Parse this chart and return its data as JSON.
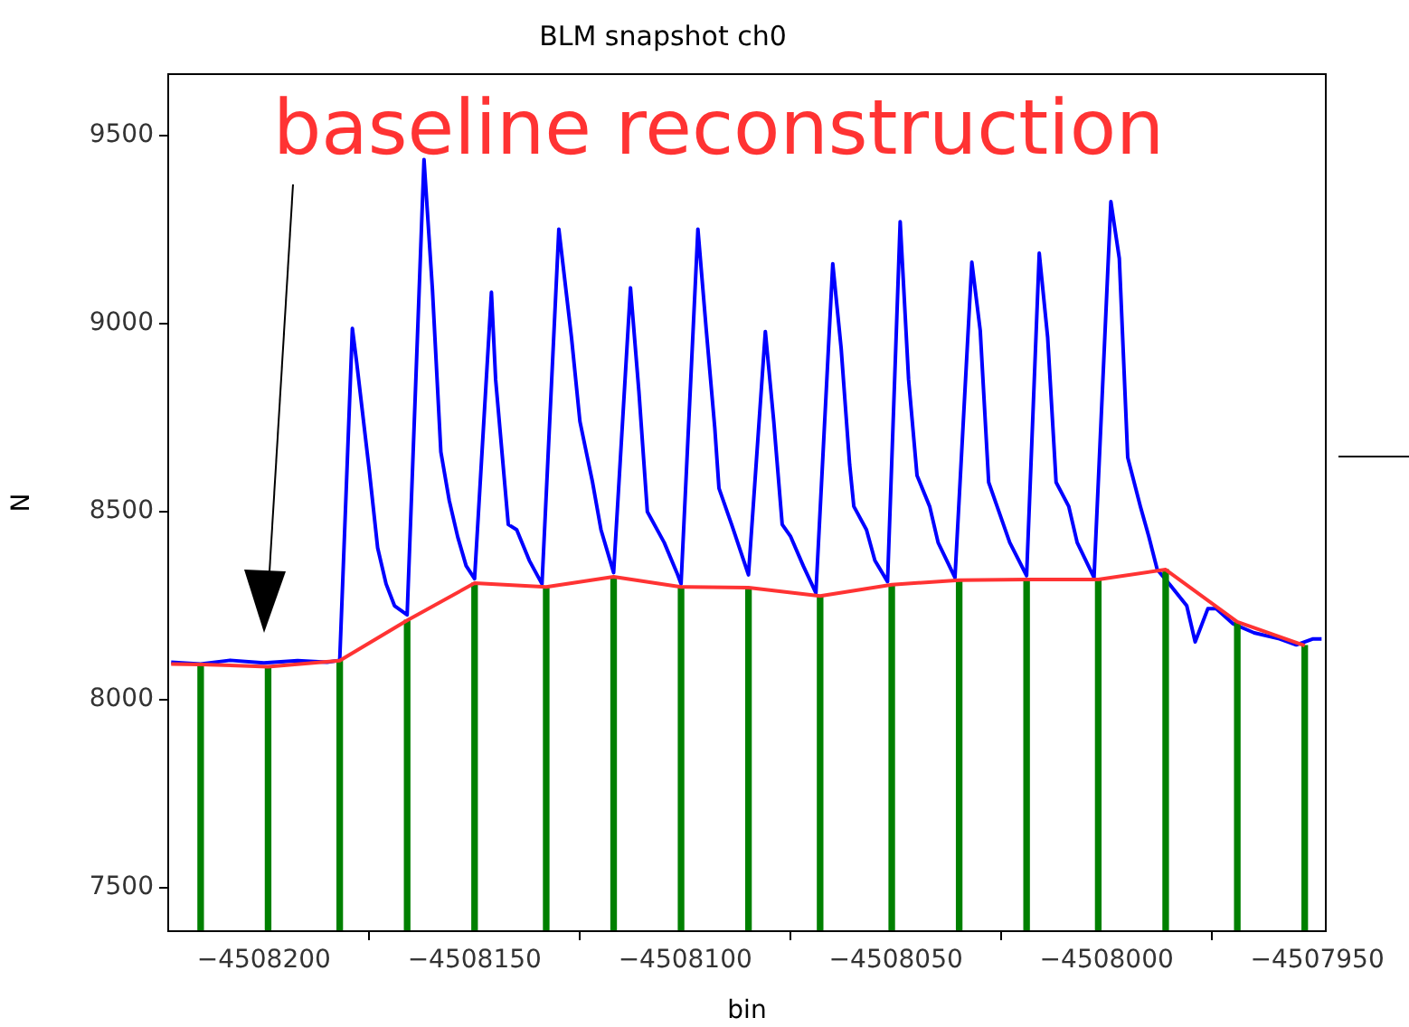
{
  "chart_data": {
    "type": "line",
    "title": "BLM snapshot ch0",
    "xlabel": "bin",
    "ylabel": "N",
    "xlim": [
      -4508222.7,
      -4507948
    ],
    "xticks": [
      -4508200,
      -4508150,
      -4508100,
      -4508050,
      -4508000,
      -4507950
    ],
    "ylim": [
      7385,
      9663
    ],
    "yticks": [
      7500,
      8000,
      8500,
      9000,
      9500
    ],
    "grid": false,
    "legend": false,
    "marker": "none",
    "line_style": "solid",
    "annotations": [
      "baseline reconstruction"
    ],
    "series": [
      {
        "color": "#0000ff",
        "x": [
          -4508222,
          -4508215,
          -4508208,
          -4508200,
          -4508192,
          -4508185,
          -4508182,
          -4508179,
          -4508178,
          -4508175,
          -4508173,
          -4508171,
          -4508169,
          -4508166,
          -4508162,
          -4508160,
          -4508158,
          -4508156,
          -4508154,
          -4508152,
          -4508150,
          -4508146,
          -4508145,
          -4508142,
          -4508140,
          -4508137,
          -4508134,
          -4508130,
          -4508127,
          -4508125,
          -4508122,
          -4508120,
          -4508117,
          -4508113,
          -4508111,
          -4508109,
          -4508105,
          -4508102,
          -4508101,
          -4508097,
          -4508095,
          -4508093,
          -4508092,
          -4508089,
          -4508085,
          -4508081,
          -4508079,
          -4508077,
          -4508075,
          -4508072,
          -4508069,
          -4508065,
          -4508063,
          -4508061,
          -4508060,
          -4508057,
          -4508055,
          -4508052,
          -4508049,
          -4508047,
          -4508045,
          -4508042,
          -4508040,
          -4508036,
          -4508032,
          -4508030,
          -4508028,
          -4508026,
          -4508023,
          -4508019,
          -4508016,
          -4508014,
          -4508012,
          -4508009,
          -4508007,
          -4508003,
          -4507999,
          -4507997,
          -4507995,
          -4507992,
          -4507990,
          -4507988,
          -4507985,
          -4507981,
          -4507979,
          -4507976,
          -4507974,
          -4507970,
          -4507965,
          -4507959,
          -4507955,
          -4507951,
          -4507949
        ],
        "values": [
          8100,
          8095,
          8105,
          8098,
          8104,
          8100,
          8105,
          8987,
          8899,
          8611,
          8404,
          8308,
          8250,
          8226,
          9436,
          9091,
          8659,
          8529,
          8433,
          8356,
          8322,
          9083,
          8851,
          8466,
          8452,
          8370,
          8308,
          9251,
          8963,
          8740,
          8578,
          8452,
          8338,
          9095,
          8819,
          8500,
          8418,
          8338,
          8308,
          9251,
          8981,
          8723,
          8562,
          8466,
          8332,
          8979,
          8740,
          8466,
          8434,
          8356,
          8284,
          9159,
          8933,
          8626,
          8514,
          8452,
          8370,
          8314,
          9271,
          8851,
          8596,
          8514,
          8418,
          8325,
          9163,
          8981,
          8578,
          8514,
          8418,
          8330,
          9187,
          8963,
          8578,
          8514,
          8418,
          8325,
          9324,
          9173,
          8644,
          8514,
          8434,
          8346,
          8306,
          8250,
          8154,
          8242,
          8242,
          8202,
          8178,
          8162,
          8146,
          8162,
          8162
        ]
      },
      {
        "type": "bar",
        "color": "#008000",
        "x": [
          -4508215,
          -4508199,
          -4508182,
          -4508166,
          -4508150,
          -4508133,
          -4508117,
          -4508101,
          -4508085,
          -4508068,
          -4508051,
          -4508035,
          -4508019,
          -4508002,
          -4507986,
          -4507969,
          -4507953
        ],
        "values": [
          8094,
          8088,
          8104,
          8211,
          8310,
          8300,
          8327,
          8300,
          8298,
          8276,
          8306,
          8318,
          8320,
          8320,
          8346,
          8207,
          8144
        ]
      },
      {
        "color": "#ff3333",
        "x": [
          -4508222,
          -4508215,
          -4508199,
          -4508182,
          -4508166,
          -4508150,
          -4508133,
          -4508117,
          -4508101,
          -4508085,
          -4508068,
          -4508051,
          -4508035,
          -4508019,
          -4508002,
          -4507986,
          -4507969,
          -4507953
        ],
        "values": [
          8095,
          8094,
          8088,
          8104,
          8211,
          8310,
          8300,
          8327,
          8300,
          8298,
          8276,
          8306,
          8318,
          8320,
          8320,
          8346,
          8207,
          8144
        ]
      }
    ]
  }
}
